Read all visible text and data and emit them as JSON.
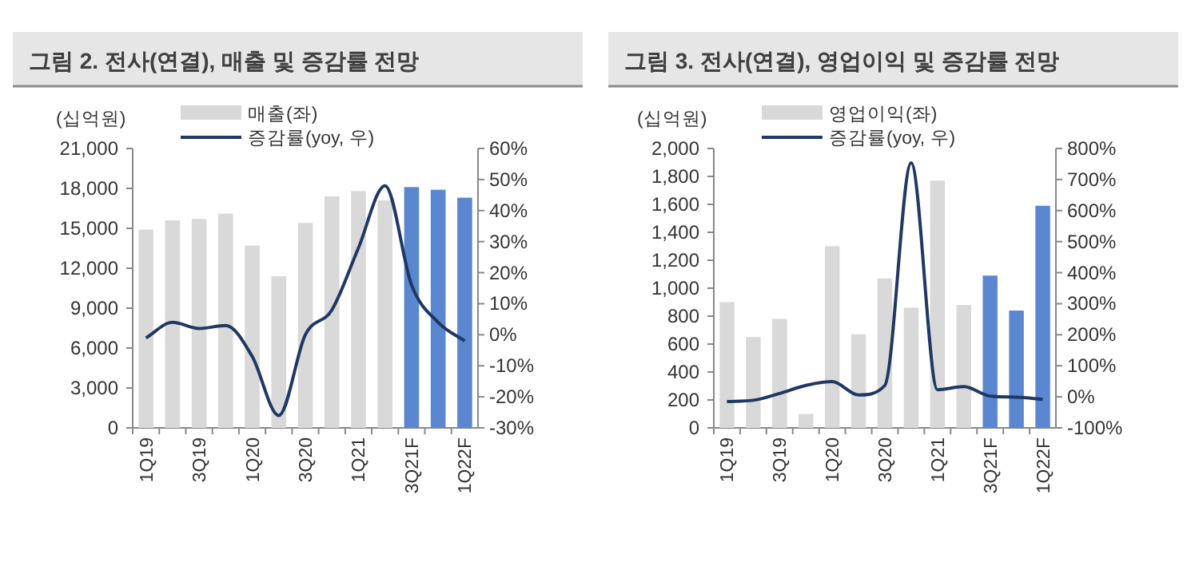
{
  "chart_data": [
    {
      "type": "bar",
      "title": "그림 2. 전사(연결), 매출 및 증감률 전망",
      "ylabel": "(십억원)",
      "legend": "top left",
      "grid": false,
      "categories": [
        "1Q19",
        null,
        "3Q19",
        null,
        "1Q20",
        null,
        "3Q20",
        null,
        "1Q21",
        null,
        "3Q21F",
        null,
        "1Q22F"
      ],
      "series": [
        {
          "name": "매출(좌)",
          "color": "#d9d9d9",
          "colors": [
            "#d9d9d9",
            "#d9d9d9",
            "#d9d9d9",
            "#d9d9d9",
            "#d9d9d9",
            "#d9d9d9",
            "#d9d9d9",
            "#d9d9d9",
            "#d9d9d9",
            "#d9d9d9",
            "#5b87d0",
            "#5b87d0",
            "#5b87d0"
          ],
          "values": [
            14900,
            15600,
            15700,
            16100,
            13700,
            11400,
            15400,
            17400,
            17800,
            17100,
            18100,
            17900,
            17300
          ]
        },
        {
          "name": "증감률(yoy, 우)",
          "type": "line",
          "axis": "y2",
          "color": "#1f3864",
          "values": [
            -1,
            4,
            2,
            3,
            -7,
            -26,
            0,
            8,
            28,
            48,
            16,
            4,
            -2
          ]
        }
      ],
      "ylim": [
        0,
        21000
      ],
      "yticks": [
        {
          "value": 0,
          "label": "0"
        },
        {
          "value": 3000,
          "label": "3,000"
        },
        {
          "value": 6000,
          "label": "6,000"
        },
        {
          "value": 9000,
          "label": "9,000"
        },
        {
          "value": 12000,
          "label": "12,000"
        },
        {
          "value": 15000,
          "label": "15,000"
        },
        {
          "value": 18000,
          "label": "18,000"
        },
        {
          "value": 21000,
          "label": "21,000"
        }
      ],
      "y2lim": [
        -30,
        60
      ],
      "y2ticks": [
        {
          "value": -30,
          "label": "-30%"
        },
        {
          "value": -20,
          "label": "-20%"
        },
        {
          "value": -10,
          "label": "-10%"
        },
        {
          "value": 0,
          "label": "0%"
        },
        {
          "value": 10,
          "label": "10%"
        },
        {
          "value": 20,
          "label": "20%"
        },
        {
          "value": 30,
          "label": "30%"
        },
        {
          "value": 40,
          "label": "40%"
        },
        {
          "value": 50,
          "label": "50%"
        },
        {
          "value": 60,
          "label": "60%"
        }
      ]
    },
    {
      "type": "bar",
      "title": "그림 3. 전사(연결), 영업이익 및 증감률 전망",
      "ylabel": "(십억원)",
      "legend": "top left",
      "grid": false,
      "categories": [
        "1Q19",
        null,
        "3Q19",
        null,
        "1Q20",
        null,
        "3Q20",
        null,
        "1Q21",
        null,
        "3Q21F",
        null,
        "1Q22F"
      ],
      "series": [
        {
          "name": "영업이익(좌)",
          "color": "#d9d9d9",
          "colors": [
            "#d9d9d9",
            "#d9d9d9",
            "#d9d9d9",
            "#d9d9d9",
            "#d9d9d9",
            "#d9d9d9",
            "#d9d9d9",
            "#d9d9d9",
            "#d9d9d9",
            "#d9d9d9",
            "#5b87d0",
            "#5b87d0",
            "#5b87d0"
          ],
          "values": [
            900,
            650,
            780,
            100,
            1300,
            670,
            1070,
            860,
            1770,
            880,
            1090,
            840,
            1590
          ]
        },
        {
          "name": "증감률(yoy, 우)",
          "type": "line",
          "axis": "y2",
          "color": "#1f3864",
          "values": [
            -15,
            -11,
            11,
            37,
            49,
            6,
            37,
            754,
            23,
            33,
            2,
            -1,
            -8
          ]
        }
      ],
      "ylim": [
        0,
        2000
      ],
      "yticks": [
        {
          "value": 0,
          "label": "0"
        },
        {
          "value": 200,
          "label": "200"
        },
        {
          "value": 400,
          "label": "400"
        },
        {
          "value": 600,
          "label": "600"
        },
        {
          "value": 800,
          "label": "800"
        },
        {
          "value": 1000,
          "label": "1,000"
        },
        {
          "value": 1200,
          "label": "1,200"
        },
        {
          "value": 1400,
          "label": "1,400"
        },
        {
          "value": 1600,
          "label": "1,600"
        },
        {
          "value": 1800,
          "label": "1,800"
        },
        {
          "value": 2000,
          "label": "2,000"
        }
      ],
      "y2lim": [
        -100,
        800
      ],
      "y2ticks": [
        {
          "value": -100,
          "label": "-100%"
        },
        {
          "value": 0,
          "label": "0%"
        },
        {
          "value": 100,
          "label": "100%"
        },
        {
          "value": 200,
          "label": "200%"
        },
        {
          "value": 300,
          "label": "300%"
        },
        {
          "value": 400,
          "label": "400%"
        },
        {
          "value": 500,
          "label": "500%"
        },
        {
          "value": 600,
          "label": "600%"
        },
        {
          "value": 700,
          "label": "700%"
        },
        {
          "value": 800,
          "label": "800%"
        }
      ]
    }
  ]
}
